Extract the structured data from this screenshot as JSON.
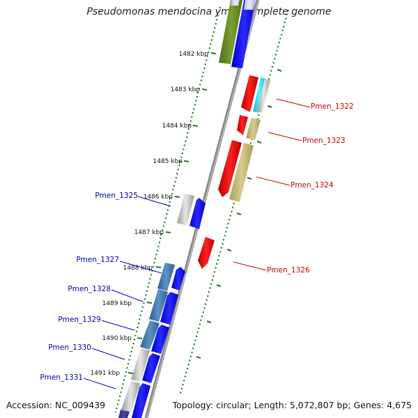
{
  "title": "Pseudomonas mendocina ymp, complete genome",
  "footer": {
    "accession": "Accession: NC_009439",
    "summary": "Topology: circular; Length: 5,072,807 bp; Genes: 4,675"
  },
  "colors": {
    "forward_label": "#0000b0",
    "reverse_label": "#cc0000",
    "tick": "#1a7a1a",
    "backbone": "#888888"
  },
  "ticks": [
    "1482 kbp",
    "1483 kbp",
    "1484 kbp",
    "1485 kbp",
    "1486 kbp",
    "1487 kbp",
    "1488 kbp",
    "1489 kbp",
    "1490 kbp",
    "1491 kbp"
  ],
  "labels": {
    "left": [
      "Pmen_1325",
      "Pmen_1327",
      "Pmen_1328",
      "Pmen_1329",
      "Pmen_1330",
      "Pmen_1331"
    ],
    "right": [
      "Pmen_1322",
      "Pmen_1323",
      "Pmen_1324",
      "Pmen_1326"
    ]
  }
}
